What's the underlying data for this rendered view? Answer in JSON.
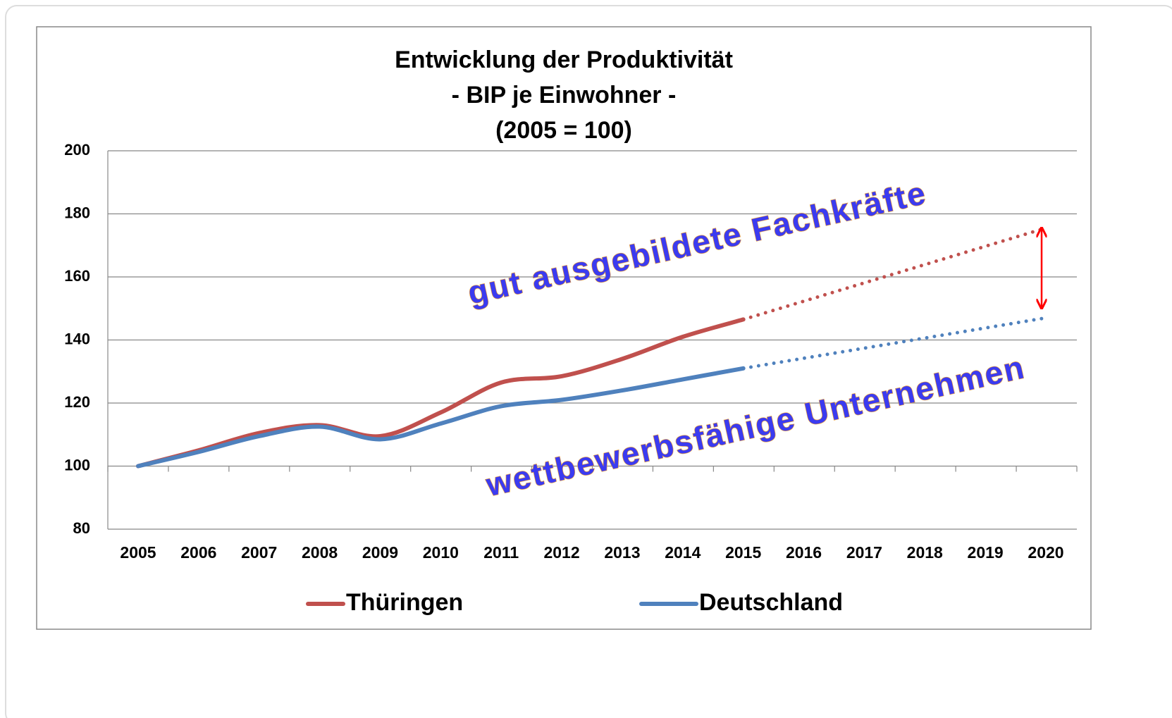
{
  "chart_data": {
    "type": "line",
    "title": [
      "Entwicklung der Produktivität",
      "- BIP je Einwohner -",
      "(2005 = 100)"
    ],
    "categories": [
      "2005",
      "2006",
      "2007",
      "2008",
      "2009",
      "2010",
      "2011",
      "2012",
      "2013",
      "2014",
      "2015",
      "2016",
      "2017",
      "2018",
      "2019",
      "2020"
    ],
    "series": [
      {
        "name": "Thüringen",
        "color": "#c0504d",
        "values": [
          100,
          105,
          110.5,
          113,
          109.5,
          117,
          126.5,
          128.5,
          134,
          141,
          146.5,
          null,
          null,
          null,
          null,
          null
        ],
        "projection": [
          null,
          null,
          null,
          null,
          null,
          null,
          null,
          null,
          null,
          null,
          null,
          152.3,
          158.1,
          163.9,
          169.7,
          175.5
        ]
      },
      {
        "name": "Deutschland",
        "color": "#4f81bd",
        "values": [
          100,
          104.5,
          109.5,
          112.5,
          108.5,
          113.5,
          119,
          121,
          124,
          127.5,
          131,
          null,
          null,
          null,
          null,
          null
        ],
        "projection": [
          null,
          null,
          null,
          null,
          null,
          null,
          null,
          null,
          null,
          null,
          null,
          134.2,
          137.4,
          140.6,
          143.8,
          147
        ]
      }
    ],
    "annotations": [
      "gut ausgebildete Fachkräfte",
      "wettbewerbsfähige Unternehmen"
    ],
    "ylim": [
      80,
      200
    ],
    "yticks": [
      80,
      100,
      120,
      140,
      160,
      180,
      200
    ],
    "grid": true,
    "legend": "bottom"
  }
}
